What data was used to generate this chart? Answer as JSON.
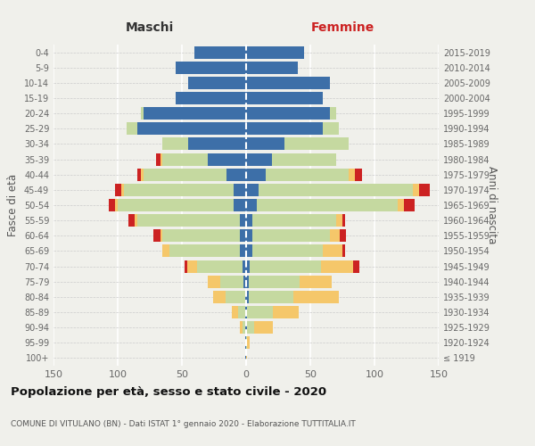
{
  "age_groups": [
    "100+",
    "95-99",
    "90-94",
    "85-89",
    "80-84",
    "75-79",
    "70-74",
    "65-69",
    "60-64",
    "55-59",
    "50-54",
    "45-49",
    "40-44",
    "35-39",
    "30-34",
    "25-29",
    "20-24",
    "15-19",
    "10-14",
    "5-9",
    "0-4"
  ],
  "birth_years": [
    "≤ 1919",
    "1920-1924",
    "1925-1929",
    "1930-1934",
    "1935-1939",
    "1940-1944",
    "1945-1949",
    "1950-1954",
    "1955-1959",
    "1960-1964",
    "1965-1969",
    "1970-1974",
    "1975-1979",
    "1980-1984",
    "1985-1989",
    "1990-1994",
    "1995-1999",
    "2000-2004",
    "2005-2009",
    "2010-2014",
    "2015-2019"
  ],
  "colors": {
    "celibi": "#3d6fa8",
    "coniugati": "#c5d9a0",
    "vedovi": "#f5c76a",
    "divorziati": "#cc2222"
  },
  "males": {
    "celibi": [
      1,
      1,
      1,
      1,
      1,
      2,
      3,
      5,
      5,
      5,
      10,
      10,
      15,
      30,
      45,
      85,
      80,
      55,
      45,
      55,
      40
    ],
    "coniugati": [
      0,
      0,
      2,
      5,
      15,
      18,
      35,
      55,
      60,
      80,
      90,
      85,
      65,
      35,
      20,
      8,
      2,
      0,
      0,
      0,
      0
    ],
    "vedovi": [
      0,
      0,
      2,
      5,
      10,
      10,
      8,
      5,
      2,
      2,
      2,
      2,
      2,
      2,
      0,
      0,
      0,
      0,
      0,
      0,
      0
    ],
    "divorziati": [
      0,
      0,
      0,
      0,
      0,
      0,
      2,
      0,
      5,
      5,
      5,
      5,
      3,
      3,
      0,
      0,
      0,
      0,
      0,
      0,
      0
    ]
  },
  "females": {
    "celibi": [
      0,
      0,
      1,
      1,
      2,
      2,
      3,
      5,
      5,
      5,
      8,
      10,
      15,
      20,
      30,
      60,
      65,
      60,
      65,
      40,
      45
    ],
    "coniugati": [
      0,
      1,
      5,
      20,
      35,
      40,
      55,
      55,
      60,
      65,
      110,
      120,
      65,
      50,
      50,
      12,
      5,
      0,
      0,
      0,
      0
    ],
    "vedovi": [
      1,
      2,
      15,
      20,
      35,
      25,
      25,
      15,
      8,
      5,
      5,
      5,
      5,
      0,
      0,
      0,
      0,
      0,
      0,
      0,
      0
    ],
    "divorziati": [
      0,
      0,
      0,
      0,
      0,
      0,
      5,
      2,
      5,
      2,
      8,
      8,
      5,
      0,
      0,
      0,
      0,
      0,
      0,
      0,
      0
    ]
  },
  "xlim": 150,
  "title": "Popolazione per età, sesso e stato civile - 2020",
  "subtitle": "COMUNE DI VITULANO (BN) - Dati ISTAT 1° gennaio 2020 - Elaborazione TUTTITALIA.IT",
  "ylabel_left": "Fasce di età",
  "ylabel_right": "Anni di nascita",
  "xlabel_left": "Maschi",
  "xlabel_right": "Femmine",
  "background_color": "#f0f0eb"
}
